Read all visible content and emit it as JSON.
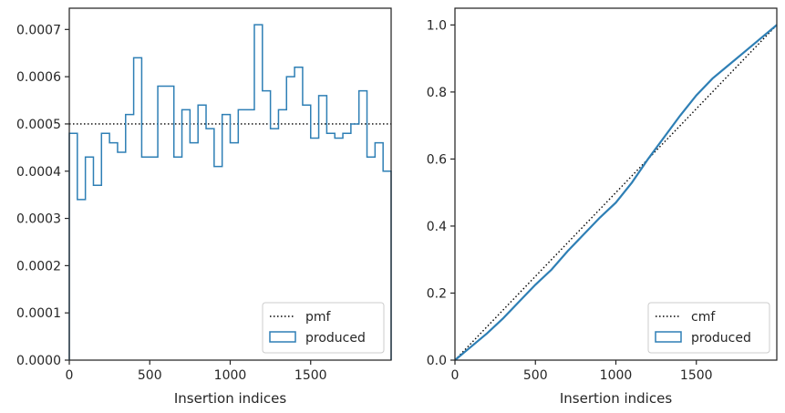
{
  "chart_data": [
    {
      "type": "step",
      "xlabel": "Insertion indices",
      "ylabel": "",
      "xlim": [
        0,
        2000
      ],
      "ylim": [
        0,
        0.000745
      ],
      "xticks": [
        0,
        500,
        1000,
        1500
      ],
      "xtick_labels": [
        "0",
        "500",
        "1000",
        "1500"
      ],
      "yticks": [
        0,
        0.0001,
        0.0002,
        0.0003,
        0.0004,
        0.0005,
        0.0006,
        0.0007
      ],
      "ytick_labels": [
        "0.0000",
        "0.0001",
        "0.0002",
        "0.0003",
        "0.0004",
        "0.0005",
        "0.0006",
        "0.0007"
      ],
      "legend_position": "lower-right",
      "series": [
        {
          "name": "pmf",
          "style": "dotted",
          "color": "#000000",
          "x": [
            0,
            2000
          ],
          "values": [
            0.0005,
            0.0005
          ]
        },
        {
          "name": "produced",
          "style": "step",
          "color": "#2e7fb5",
          "bin_edges": [
            0,
            50,
            100,
            150,
            200,
            250,
            300,
            350,
            400,
            450,
            500,
            550,
            600,
            650,
            700,
            750,
            800,
            850,
            900,
            950,
            1000,
            1050,
            1100,
            1150,
            1200,
            1250,
            1300,
            1350,
            1400,
            1450,
            1500,
            1550,
            1600,
            1650,
            1700,
            1750,
            1800,
            1850,
            1900,
            1950,
            2000
          ],
          "values": [
            0.00048,
            0.00034,
            0.00043,
            0.00037,
            0.00048,
            0.00046,
            0.00044,
            0.00052,
            0.00064,
            0.00043,
            0.00043,
            0.00058,
            0.00058,
            0.00043,
            0.00053,
            0.00046,
            0.00054,
            0.00049,
            0.00041,
            0.00052,
            0.00046,
            0.00053,
            0.00053,
            0.00071,
            0.00057,
            0.00049,
            0.00053,
            0.0006,
            0.00062,
            0.00054,
            0.00047,
            0.00056,
            0.00048,
            0.00047,
            0.00048,
            0.0005,
            0.00057,
            0.00043,
            0.00046,
            0.0004
          ]
        }
      ]
    },
    {
      "type": "line",
      "xlabel": "Insertion indices",
      "ylabel": "",
      "xlim": [
        0,
        2000
      ],
      "ylim": [
        0,
        1.05
      ],
      "xticks": [
        0,
        500,
        1000,
        1500
      ],
      "xtick_labels": [
        "0",
        "500",
        "1000",
        "1500"
      ],
      "yticks": [
        0,
        0.2,
        0.4,
        0.6,
        0.8,
        1.0
      ],
      "ytick_labels": [
        "0.0",
        "0.2",
        "0.4",
        "0.6",
        "0.8",
        "1.0"
      ],
      "legend_position": "lower-right",
      "series": [
        {
          "name": "cmf",
          "style": "dotted",
          "color": "#000000",
          "x": [
            0,
            2000
          ],
          "values": [
            0,
            1
          ]
        },
        {
          "name": "produced",
          "style": "solid",
          "color": "#2e7fb5",
          "x": [
            0,
            100,
            200,
            300,
            400,
            500,
            600,
            700,
            800,
            900,
            1000,
            1100,
            1200,
            1300,
            1400,
            1500,
            1600,
            1700,
            1800,
            1900,
            2000
          ],
          "values": [
            0,
            0.04,
            0.08,
            0.125,
            0.175,
            0.225,
            0.27,
            0.325,
            0.375,
            0.425,
            0.47,
            0.53,
            0.6,
            0.665,
            0.73,
            0.79,
            0.84,
            0.88,
            0.92,
            0.96,
            1.0
          ]
        }
      ]
    }
  ]
}
